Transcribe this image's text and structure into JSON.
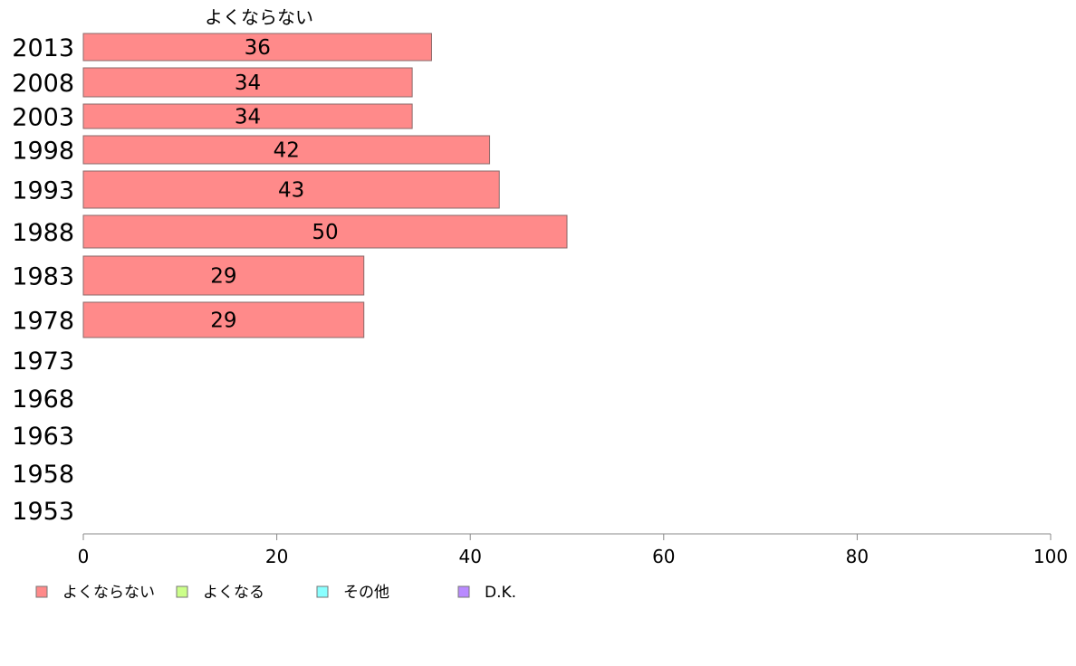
{
  "chart_data": {
    "type": "bar",
    "orientation": "horizontal",
    "categories": [
      "2013",
      "2008",
      "2003",
      "1998",
      "1993",
      "1988",
      "1983",
      "1978",
      "1973",
      "1968",
      "1963",
      "1958",
      "1953"
    ],
    "series": [
      {
        "name": "よくならない",
        "color": "#ff8a8a",
        "values": [
          36,
          34,
          34,
          42,
          43,
          50,
          29,
          29,
          null,
          null,
          null,
          null,
          null
        ]
      },
      {
        "name": "よくなる",
        "color": "#ccff8a",
        "values": [
          null,
          null,
          null,
          null,
          null,
          null,
          null,
          null,
          null,
          null,
          null,
          null,
          null
        ]
      },
      {
        "name": "その他",
        "color": "#8affff",
        "values": [
          null,
          null,
          null,
          null,
          null,
          null,
          null,
          null,
          null,
          null,
          null,
          null,
          null
        ]
      },
      {
        "name": "D.K.",
        "color": "#b98aff",
        "values": [
          null,
          null,
          null,
          null,
          null,
          null,
          null,
          null,
          null,
          null,
          null,
          null,
          null
        ]
      }
    ],
    "column_header": "よくならない",
    "xlim": [
      0,
      100
    ],
    "xticks": [
      0,
      20,
      40,
      60,
      80,
      100
    ],
    "grid": false,
    "legend_position": "bottom-left",
    "bar_border_color": "#8a6a6a",
    "axis_color": "#888888"
  }
}
